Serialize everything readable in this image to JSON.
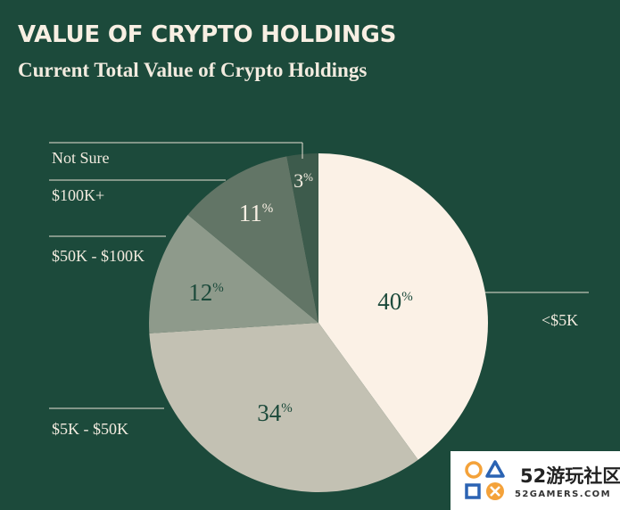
{
  "header": {
    "title": "VALUE OF CRYPTO HOLDINGS",
    "subtitle": "Current Total Value of Crypto Holdings"
  },
  "chart_data": {
    "type": "pie",
    "title": "VALUE OF CRYPTO HOLDINGS",
    "subtitle": "Current Total Value of Crypto Holdings",
    "legend": "none",
    "slices": [
      {
        "label": "<$5K",
        "value": 40,
        "display": "40",
        "color": "#fbf1e6",
        "text_color": "#1c4a3b"
      },
      {
        "label": "$5K - $50K",
        "value": 34,
        "display": "34",
        "color": "#c3c1b3",
        "text_color": "#1c4a3b"
      },
      {
        "label": "$50K - $100K",
        "value": 12,
        "display": "12",
        "color": "#8e9a8b",
        "text_color": "#1c4a3b"
      },
      {
        "label": "$100K+",
        "value": 11,
        "display": "11",
        "color": "#627566",
        "text_color": "#f8efe3"
      },
      {
        "label": "Not Sure",
        "value": 3,
        "display": "3",
        "color": "#3d5b4c",
        "text_color": "#f8efe3"
      }
    ]
  },
  "watermark": {
    "text_cn": "52游玩社区",
    "text_en": "52GAMERS.COM"
  }
}
